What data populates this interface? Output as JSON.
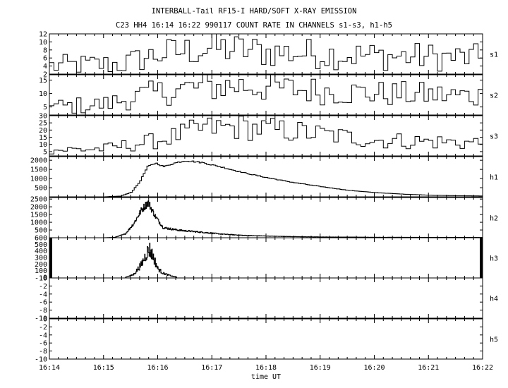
{
  "title": "INTERBALL-Tail RF15-I HARD/SOFT X-RAY EMISSION",
  "subtitle": "C23 HH4 16:14 16:22 990117  COUNT RATE IN CHANNELS s1-s3, h1-h5",
  "chart_data": {
    "type": "line",
    "xlabel": "time UT",
    "x_ticks": [
      "16:14",
      "16:15",
      "16:16",
      "16:17",
      "16:18",
      "16:19",
      "16:20",
      "16:21",
      "16:22"
    ],
    "xlim_minutes": [
      0,
      8
    ],
    "panels": [
      {
        "name": "s1",
        "ylim": [
          2,
          12
        ],
        "yticks": [
          "12",
          "10",
          "8",
          "6",
          "4",
          "2"
        ]
      },
      {
        "name": "s2",
        "ylim": [
          2,
          17
        ],
        "yticks": [
          "15",
          "10",
          "5"
        ]
      },
      {
        "name": "s3",
        "ylim": [
          2,
          30
        ],
        "yticks": [
          "30",
          "25",
          "20",
          "15",
          "10",
          "5"
        ]
      },
      {
        "name": "h1",
        "ylim": [
          0,
          2200
        ],
        "yticks": [
          "2000",
          "1500",
          "1000",
          "500"
        ]
      },
      {
        "name": "h2",
        "ylim": [
          0,
          2600
        ],
        "yticks": [
          "2500",
          "2000",
          "1500",
          "1000",
          "500"
        ]
      },
      {
        "name": "h3",
        "ylim": [
          -10,
          600
        ],
        "yticks": [
          "600",
          "500",
          "400",
          "300",
          "200",
          "100",
          "0",
          "-10"
        ]
      },
      {
        "name": "h4",
        "ylim": [
          -10,
          0
        ],
        "yticks": [
          "0",
          "-2",
          "-4",
          "-6",
          "-8",
          "-10"
        ]
      },
      {
        "name": "h5",
        "ylim": [
          -10,
          0
        ],
        "yticks": [
          "0",
          "-2",
          "-4",
          "-6",
          "-8",
          "-10"
        ]
      }
    ],
    "series": [
      {
        "name": "s1",
        "profile": [
          [
            0,
            4
          ],
          [
            1.3,
            4.5
          ],
          [
            2,
            7
          ],
          [
            3,
            8.5
          ],
          [
            4,
            7.5
          ],
          [
            5,
            7
          ],
          [
            6,
            6.5
          ],
          [
            8,
            6
          ]
        ],
        "noise": 2.2
      },
      {
        "name": "s2",
        "profile": [
          [
            0,
            5
          ],
          [
            1,
            6
          ],
          [
            1.6,
            9
          ],
          [
            2.5,
            12
          ],
          [
            3.5,
            13
          ],
          [
            4.5,
            11.5
          ],
          [
            6,
            10
          ],
          [
            8,
            9
          ]
        ],
        "noise": 2.2
      },
      {
        "name": "s3",
        "profile": [
          [
            0,
            6
          ],
          [
            1,
            7
          ],
          [
            2,
            13
          ],
          [
            2.8,
            21
          ],
          [
            3.5,
            22
          ],
          [
            4.5,
            19
          ],
          [
            6,
            13
          ],
          [
            8,
            11
          ]
        ],
        "noise": 2.2
      },
      {
        "name": "h1",
        "profile": [
          [
            0,
            0
          ],
          [
            1.0,
            0
          ],
          [
            1.3,
            40
          ],
          [
            1.5,
            250
          ],
          [
            1.65,
            800
          ],
          [
            1.8,
            1650
          ],
          [
            1.95,
            1850
          ],
          [
            2.1,
            1650
          ],
          [
            2.3,
            1850
          ],
          [
            2.5,
            1980
          ],
          [
            2.8,
            1880
          ],
          [
            3.2,
            1600
          ],
          [
            3.6,
            1300
          ],
          [
            4.0,
            1050
          ],
          [
            4.5,
            780
          ],
          [
            5,
            560
          ],
          [
            5.5,
            360
          ],
          [
            6,
            230
          ],
          [
            6.5,
            150
          ],
          [
            7,
            90
          ],
          [
            7.5,
            60
          ],
          [
            8,
            45
          ]
        ],
        "noise": 0.02
      },
      {
        "name": "h2",
        "profile": [
          [
            0,
            0
          ],
          [
            1.0,
            0
          ],
          [
            1.2,
            20
          ],
          [
            1.4,
            250
          ],
          [
            1.55,
            900
          ],
          [
            1.7,
            1800
          ],
          [
            1.82,
            2300
          ],
          [
            1.95,
            1400
          ],
          [
            2.1,
            650
          ],
          [
            2.4,
            480
          ],
          [
            2.8,
            360
          ],
          [
            3.2,
            230
          ],
          [
            3.6,
            150
          ],
          [
            4,
            110
          ],
          [
            4.5,
            70
          ],
          [
            5,
            50
          ],
          [
            6,
            30
          ],
          [
            8,
            15
          ]
        ],
        "noise": 0.12
      },
      {
        "name": "h3",
        "profile": [
          [
            1.4,
            0
          ],
          [
            1.55,
            40
          ],
          [
            1.7,
            200
          ],
          [
            1.8,
            380
          ],
          [
            1.85,
            420
          ],
          [
            1.92,
            300
          ],
          [
            2.0,
            130
          ],
          [
            2.1,
            60
          ],
          [
            2.25,
            20
          ],
          [
            2.35,
            0
          ]
        ],
        "noise": 0.3
      },
      {
        "name": "h4",
        "profile": [],
        "noise": 0
      },
      {
        "name": "h5",
        "profile": [],
        "noise": 0
      }
    ]
  }
}
